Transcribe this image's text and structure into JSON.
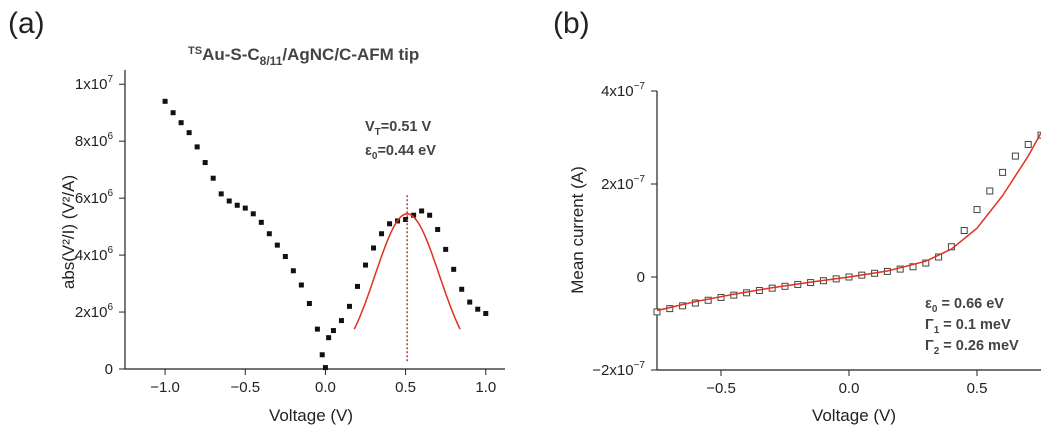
{
  "chart_data": [
    {
      "type": "scatter",
      "panel_label": "(a)",
      "title": {
        "sup": "TS",
        "main": "Au-S-C",
        "sub": "8/11",
        "rest": "/AgNC/C-AFM tip"
      },
      "xlabel": "Voltage (V)",
      "ylabel": "abs(V²/I) (V²/A)",
      "xlim": [
        -1.25,
        1.12
      ],
      "ylim": [
        0,
        10500000
      ],
      "xticks": [
        {
          "value": -1.0,
          "label": "−1.0"
        },
        {
          "value": -0.5,
          "label": "−0.5"
        },
        {
          "value": 0.0,
          "label": "0.0"
        },
        {
          "value": 0.5,
          "label": "0.5"
        },
        {
          "value": 1.0,
          "label": "1.0"
        }
      ],
      "yticks": [
        {
          "value": 0,
          "label": "0",
          "exp": ""
        },
        {
          "value": 2000000,
          "label": "2x10",
          "exp": "6"
        },
        {
          "value": 4000000,
          "label": "4x10",
          "exp": "6"
        },
        {
          "value": 6000000,
          "label": "6x10",
          "exp": "6"
        },
        {
          "value": 8000000,
          "label": "8x10",
          "exp": "6"
        },
        {
          "value": 10000000,
          "label": "1x10",
          "exp": "7"
        }
      ],
      "data_left": [
        [
          -1.0,
          9400000
        ],
        [
          -0.95,
          9000000
        ],
        [
          -0.9,
          8650000
        ],
        [
          -0.85,
          8300000
        ],
        [
          -0.8,
          7800000
        ],
        [
          -0.75,
          7250000
        ],
        [
          -0.7,
          6700000
        ],
        [
          -0.65,
          6150000
        ],
        [
          -0.6,
          5900000
        ],
        [
          -0.55,
          5750000
        ],
        [
          -0.5,
          5650000
        ],
        [
          -0.45,
          5450000
        ],
        [
          -0.4,
          5150000
        ],
        [
          -0.35,
          4750000
        ],
        [
          -0.3,
          4350000
        ],
        [
          -0.25,
          3950000
        ],
        [
          -0.2,
          3450000
        ],
        [
          -0.15,
          2950000
        ],
        [
          -0.1,
          2300000
        ],
        [
          -0.05,
          1400000
        ],
        [
          -0.02,
          500000
        ],
        [
          0.0,
          50000
        ]
      ],
      "data_right": [
        [
          0.02,
          1100000
        ],
        [
          0.05,
          1350000
        ],
        [
          0.1,
          1700000
        ],
        [
          0.15,
          2200000
        ],
        [
          0.2,
          2900000
        ],
        [
          0.25,
          3650000
        ],
        [
          0.3,
          4250000
        ],
        [
          0.35,
          4750000
        ],
        [
          0.4,
          5100000
        ],
        [
          0.45,
          5200000
        ],
        [
          0.5,
          5250000
        ],
        [
          0.55,
          5400000
        ],
        [
          0.6,
          5550000
        ],
        [
          0.65,
          5400000
        ],
        [
          0.7,
          4900000
        ],
        [
          0.75,
          4200000
        ],
        [
          0.8,
          3500000
        ],
        [
          0.85,
          2800000
        ],
        [
          0.9,
          2350000
        ],
        [
          0.95,
          2100000
        ],
        [
          1.0,
          1950000
        ]
      ],
      "fit": {
        "color": "#e03020",
        "center": 0.51,
        "peak": 5450000,
        "width": 0.2,
        "xrange": [
          0.18,
          0.84
        ]
      },
      "vline": {
        "x": 0.51,
        "ymax": 6100000,
        "color": "#c0392b"
      },
      "annotations": [
        {
          "main": "V",
          "sub": "T",
          "rest": "=0.51 V"
        },
        {
          "main": "ε",
          "sub": "0",
          "rest": "=0.44 eV"
        }
      ]
    },
    {
      "type": "scatter",
      "panel_label": "(b)",
      "xlabel": "Voltage (V)",
      "ylabel": "Mean current (A)",
      "xlim": [
        -0.75,
        0.75
      ],
      "ylim": [
        -2e-07,
        4e-07
      ],
      "xticks": [
        {
          "value": -0.5,
          "label": "−0.5"
        },
        {
          "value": 0.0,
          "label": "0.0"
        },
        {
          "value": 0.5,
          "label": "0.5"
        }
      ],
      "yticks": [
        {
          "value": -2e-07,
          "label": "−2x10",
          "exp": "−7"
        },
        {
          "value": 0,
          "label": "0",
          "exp": ""
        },
        {
          "value": 2e-07,
          "label": "2x10",
          "exp": "−7"
        },
        {
          "value": 4e-07,
          "label": "4x10",
          "exp": "−7"
        }
      ],
      "data": [
        [
          -0.75,
          -7.5e-08
        ],
        [
          -0.7,
          -6.8e-08
        ],
        [
          -0.65,
          -6.2e-08
        ],
        [
          -0.6,
          -5.6e-08
        ],
        [
          -0.55,
          -5e-08
        ],
        [
          -0.5,
          -4.4e-08
        ],
        [
          -0.45,
          -3.9e-08
        ],
        [
          -0.4,
          -3.4e-08
        ],
        [
          -0.35,
          -2.9e-08
        ],
        [
          -0.3,
          -2.4e-08
        ],
        [
          -0.25,
          -2e-08
        ],
        [
          -0.2,
          -1.6e-08
        ],
        [
          -0.15,
          -1.2e-08
        ],
        [
          -0.1,
          -8e-09
        ],
        [
          -0.05,
          -4e-09
        ],
        [
          0.0,
          0
        ],
        [
          0.05,
          4e-09
        ],
        [
          0.1,
          8e-09
        ],
        [
          0.15,
          1.2e-08
        ],
        [
          0.2,
          1.7e-08
        ],
        [
          0.25,
          2.2e-08
        ],
        [
          0.3,
          3e-08
        ],
        [
          0.35,
          4.3e-08
        ],
        [
          0.4,
          6.5e-08
        ],
        [
          0.45,
          1e-07
        ],
        [
          0.5,
          1.45e-07
        ],
        [
          0.55,
          1.85e-07
        ],
        [
          0.6,
          2.25e-07
        ],
        [
          0.65,
          2.6e-07
        ],
        [
          0.7,
          2.85e-07
        ],
        [
          0.75,
          3.05e-07
        ]
      ],
      "fit": [
        [
          -0.75,
          -7.2e-08
        ],
        [
          -0.6,
          -5.3e-08
        ],
        [
          -0.45,
          -3.7e-08
        ],
        [
          -0.3,
          -2.3e-08
        ],
        [
          -0.15,
          -1.1e-08
        ],
        [
          0.0,
          0
        ],
        [
          0.15,
          1.3e-08
        ],
        [
          0.3,
          3.4e-08
        ],
        [
          0.4,
          6e-08
        ],
        [
          0.5,
          1.05e-07
        ],
        [
          0.6,
          1.75e-07
        ],
        [
          0.7,
          2.6e-07
        ],
        [
          0.75,
          3.1e-07
        ]
      ],
      "fit_color": "#e03020",
      "annotations": [
        {
          "main": "ε",
          "sub": "0",
          "rest": " = 0.66 eV"
        },
        {
          "main": "Γ",
          "sub": "1",
          "rest": " = 0.1 meV"
        },
        {
          "main": "Γ",
          "sub": "2",
          "rest": " = 0.26 meV"
        }
      ]
    }
  ]
}
